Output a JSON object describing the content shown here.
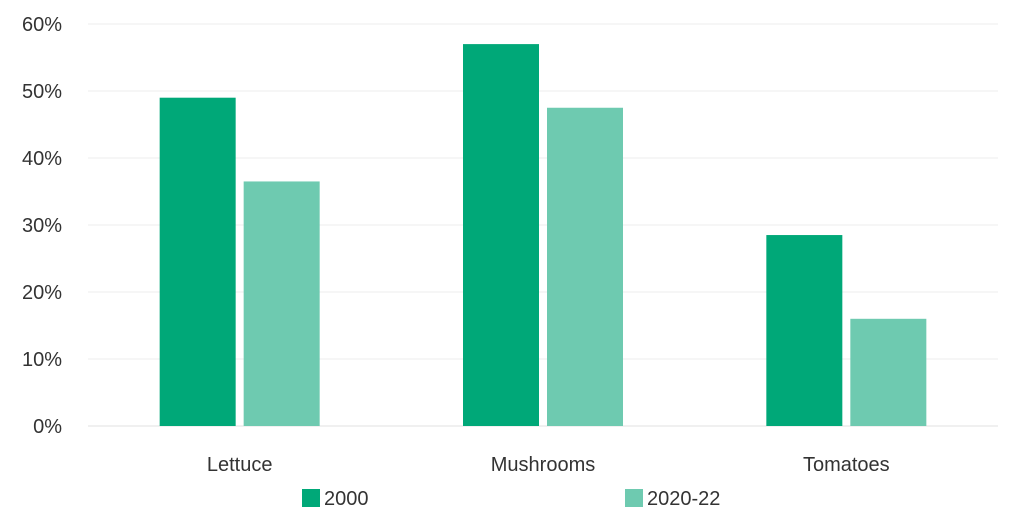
{
  "chart_data": {
    "type": "bar",
    "categories": [
      "Lettuce",
      "Mushrooms",
      "Tomatoes"
    ],
    "series": [
      {
        "name": "2000",
        "values": [
          49,
          57,
          28.5
        ],
        "color": "#00a878"
      },
      {
        "name": "2020-22",
        "values": [
          36.5,
          47.5,
          16
        ],
        "color": "#6ecab0"
      }
    ],
    "y_ticks": [
      "0%",
      "10%",
      "20%",
      "30%",
      "40%",
      "50%",
      "60%"
    ],
    "ylim": [
      0,
      60
    ],
    "grid": true,
    "legend_position": "bottom",
    "gridline_color": "#eeeeee"
  }
}
